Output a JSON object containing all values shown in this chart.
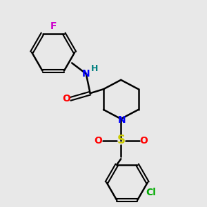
{
  "background_color": "#e8e8e8",
  "bond_color": "#000000",
  "atom_colors": {
    "F": "#cc00cc",
    "N_amide": "#0000ff",
    "H": "#008080",
    "O": "#ff0000",
    "S": "#cccc00",
    "N_pip": "#0000ff",
    "Cl": "#00aa00"
  },
  "figsize": [
    3.0,
    3.0
  ],
  "dpi": 100
}
